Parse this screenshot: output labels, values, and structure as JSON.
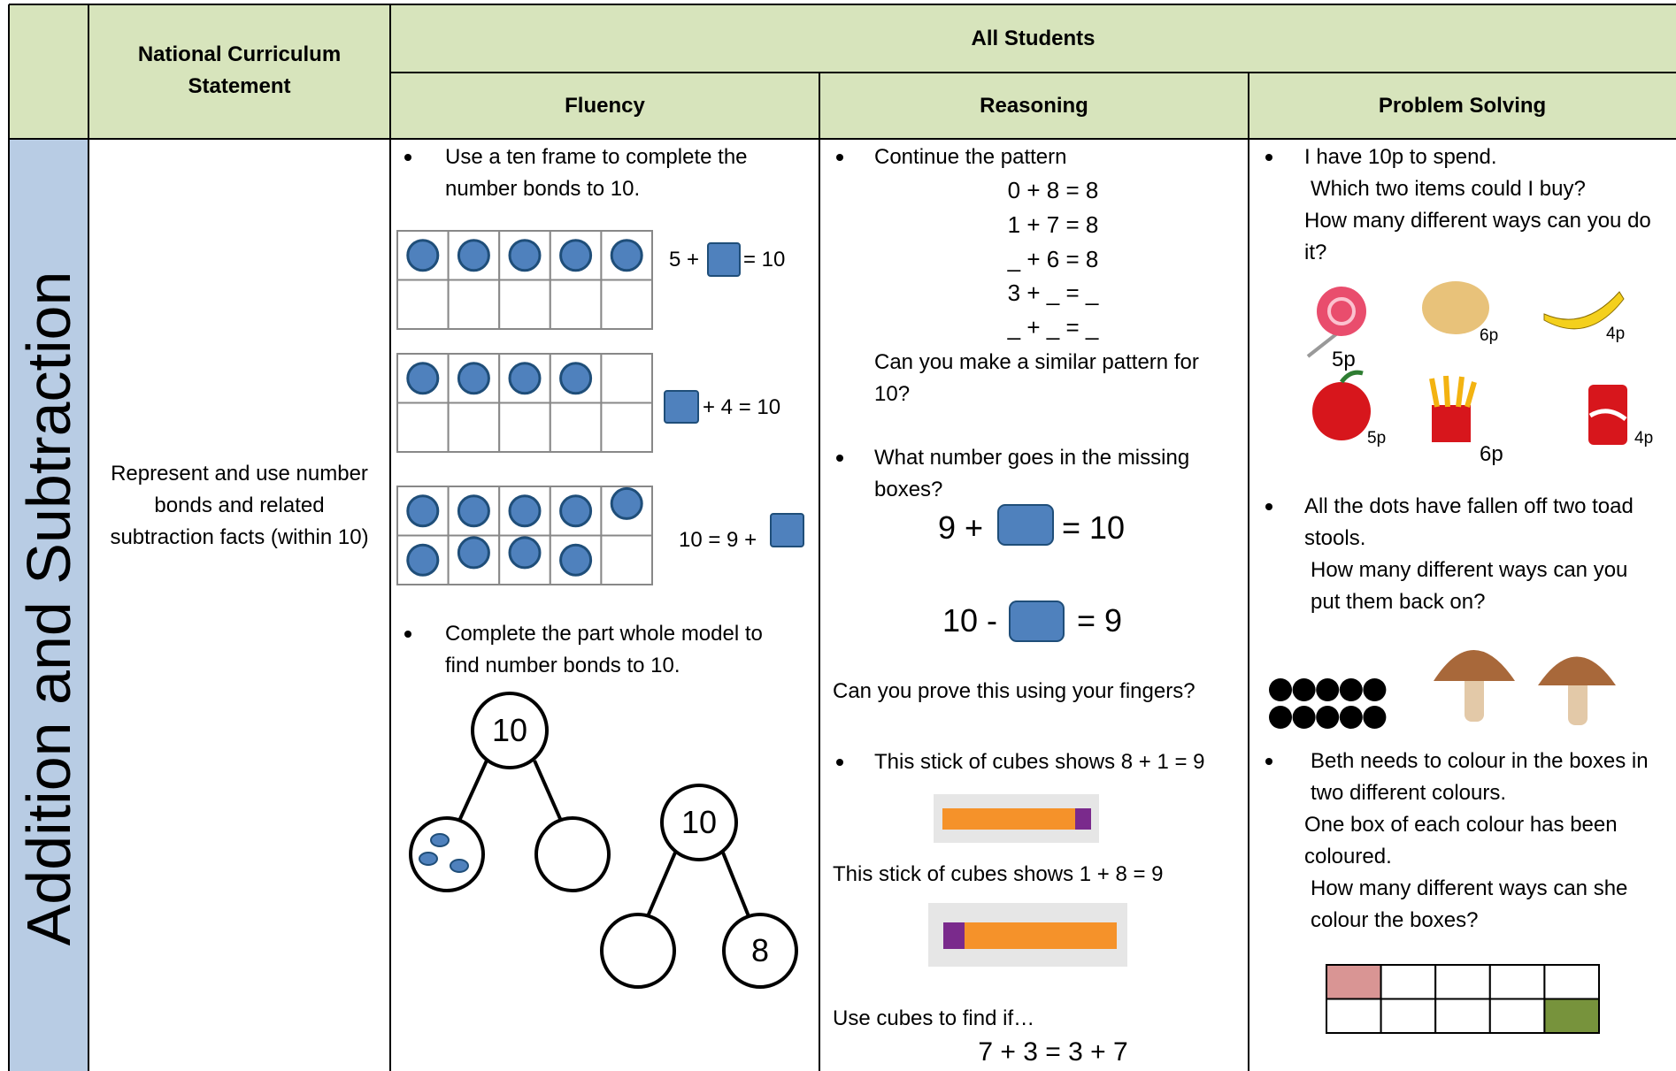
{
  "header": {
    "curriculum": "National Curriculum Statement",
    "all_students": "All Students",
    "fluency": "Fluency",
    "reasoning": "Reasoning",
    "problem_solving": "Problem Solving"
  },
  "row": {
    "strand": "Addition and Subtraction",
    "statement": "Represent and use number bonds and related subtraction facts (within 10)"
  },
  "fluency": {
    "task1": "Use a ten frame to complete the number bonds to 10.",
    "eq1": [
      "5 +",
      "= 10"
    ],
    "eq2": "+ 4 = 10",
    "eq3": "10 = 9 +",
    "task2": "Complete the part whole model to find number bonds to 10.",
    "model1_whole": "10",
    "model2_whole": "10",
    "model2_part": "8"
  },
  "reasoning": {
    "task1": "Continue the pattern",
    "pattern": [
      "0 + 8 = 8",
      "1 + 7 = 8",
      "_ + 6 = 8",
      "3 + _ = _",
      "_ + _ = _"
    ],
    "similar": "Can you make a similar pattern for 10?",
    "task2": "What number goes in the missing boxes?",
    "eqA": [
      "9 +",
      "= 10"
    ],
    "eqB": [
      "10 -",
      "= 9"
    ],
    "fingers": "Can you prove this using your fingers?",
    "task3": "This stick of cubes shows 8 + 1 = 9",
    "stick2": "This stick of cubes shows 1 + 8 = 9",
    "use_cubes": "Use cubes to find if…",
    "final_eq": "7 + 3 = 3 + 7"
  },
  "problem_solving": {
    "task1": [
      "I have 10p to spend.",
      "Which two items could I buy?",
      "How many different ways can you do it?"
    ],
    "prices": [
      "5p",
      "6p",
      "4p",
      "5p",
      "6p",
      "4p"
    ],
    "task2": [
      "All the dots have fallen off two toad stools.",
      "How many different ways can you put them back on?"
    ],
    "task3": [
      "Beth needs to colour in the boxes in two different colours.",
      "One box of each colour has been coloured.",
      "How many different ways can she colour the boxes?"
    ]
  }
}
